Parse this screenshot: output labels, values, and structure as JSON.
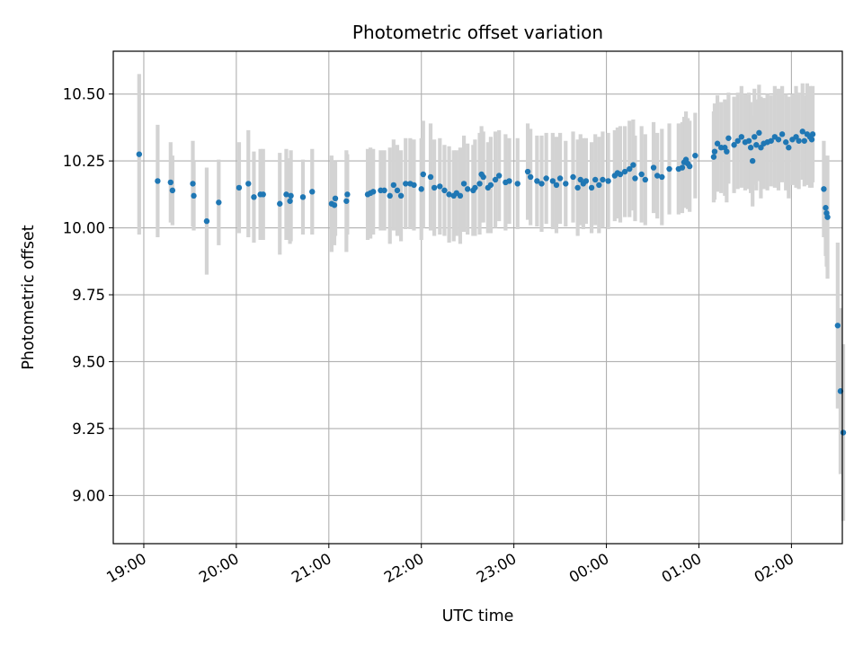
{
  "chart_data": {
    "type": "scatter",
    "title": "Photometric offset variation",
    "xlabel": "UTC time",
    "ylabel": "Photometric offset",
    "grid": true,
    "error_bars": true,
    "colors": {
      "points": "#1f77b4",
      "error_bars": "#d3d3d3",
      "grid": "#b0b0b0"
    },
    "xlim": [
      -0.33,
      7.55
    ],
    "ylim": [
      8.82,
      10.66
    ],
    "x_ticks": [
      {
        "value": 0,
        "label": "19:00"
      },
      {
        "value": 1,
        "label": "20:00"
      },
      {
        "value": 2,
        "label": "21:00"
      },
      {
        "value": 3,
        "label": "22:00"
      },
      {
        "value": 4,
        "label": "23:00"
      },
      {
        "value": 5,
        "label": "00:00"
      },
      {
        "value": 6,
        "label": "01:00"
      },
      {
        "value": 7,
        "label": "02:00"
      }
    ],
    "y_ticks": [
      {
        "value": 9.0,
        "label": "9.00"
      },
      {
        "value": 9.25,
        "label": "9.25"
      },
      {
        "value": 9.5,
        "label": "9.50"
      },
      {
        "value": 9.75,
        "label": "9.75"
      },
      {
        "value": 10.0,
        "label": "10.00"
      },
      {
        "value": 10.25,
        "label": "10.25"
      },
      {
        "value": 10.5,
        "label": "10.50"
      }
    ],
    "points": [
      [
        -0.05,
        10.275,
        0.3
      ],
      [
        0.15,
        10.175,
        0.21
      ],
      [
        0.29,
        10.17,
        0.15
      ],
      [
        0.31,
        10.14,
        0.13
      ],
      [
        0.53,
        10.165,
        0.16
      ],
      [
        0.54,
        10.12,
        0.13
      ],
      [
        0.68,
        10.025,
        0.2
      ],
      [
        0.81,
        10.095,
        0.16
      ],
      [
        1.03,
        10.15,
        0.17
      ],
      [
        1.13,
        10.165,
        0.2
      ],
      [
        1.19,
        10.115,
        0.17
      ],
      [
        1.26,
        10.125,
        0.17
      ],
      [
        1.29,
        10.125,
        0.17
      ],
      [
        1.47,
        10.09,
        0.19
      ],
      [
        1.54,
        10.125,
        0.17
      ],
      [
        1.58,
        10.1,
        0.16
      ],
      [
        1.59,
        10.12,
        0.17
      ],
      [
        1.72,
        10.115,
        0.14
      ],
      [
        1.82,
        10.135,
        0.16
      ],
      [
        2.03,
        10.09,
        0.18
      ],
      [
        2.06,
        10.085,
        0.15
      ],
      [
        2.07,
        10.11,
        0.14
      ],
      [
        2.19,
        10.1,
        0.19
      ],
      [
        2.2,
        10.125,
        0.15
      ],
      [
        2.42,
        10.125,
        0.17
      ],
      [
        2.45,
        10.13,
        0.17
      ],
      [
        2.48,
        10.135,
        0.16
      ],
      [
        2.56,
        10.14,
        0.15
      ],
      [
        2.6,
        10.14,
        0.15
      ],
      [
        2.66,
        10.12,
        0.18
      ],
      [
        2.7,
        10.16,
        0.17
      ],
      [
        2.74,
        10.14,
        0.17
      ],
      [
        2.78,
        10.12,
        0.17
      ],
      [
        2.83,
        10.165,
        0.17
      ],
      [
        2.88,
        10.165,
        0.17
      ],
      [
        2.92,
        10.16,
        0.17
      ],
      [
        3.0,
        10.145,
        0.19
      ],
      [
        3.02,
        10.2,
        0.2
      ],
      [
        3.1,
        10.19,
        0.2
      ],
      [
        3.14,
        10.15,
        0.18
      ],
      [
        3.2,
        10.155,
        0.18
      ],
      [
        3.25,
        10.14,
        0.17
      ],
      [
        3.3,
        10.125,
        0.18
      ],
      [
        3.35,
        10.12,
        0.17
      ],
      [
        3.38,
        10.13,
        0.16
      ],
      [
        3.42,
        10.12,
        0.18
      ],
      [
        3.46,
        10.165,
        0.18
      ],
      [
        3.5,
        10.145,
        0.17
      ],
      [
        3.56,
        10.14,
        0.17
      ],
      [
        3.58,
        10.15,
        0.18
      ],
      [
        3.63,
        10.165,
        0.19
      ],
      [
        3.65,
        10.2,
        0.18
      ],
      [
        3.67,
        10.19,
        0.17
      ],
      [
        3.72,
        10.15,
        0.17
      ],
      [
        3.75,
        10.16,
        0.18
      ],
      [
        3.8,
        10.18,
        0.18
      ],
      [
        3.84,
        10.195,
        0.17
      ],
      [
        3.91,
        10.17,
        0.18
      ],
      [
        3.95,
        10.175,
        0.16
      ],
      [
        4.04,
        10.165,
        0.17
      ],
      [
        4.15,
        10.21,
        0.18
      ],
      [
        4.18,
        10.19,
        0.18
      ],
      [
        4.25,
        10.175,
        0.17
      ],
      [
        4.3,
        10.165,
        0.18
      ],
      [
        4.35,
        10.185,
        0.17
      ],
      [
        4.42,
        10.175,
        0.18
      ],
      [
        4.46,
        10.16,
        0.18
      ],
      [
        4.5,
        10.185,
        0.17
      ],
      [
        4.56,
        10.165,
        0.16
      ],
      [
        4.64,
        10.19,
        0.17
      ],
      [
        4.69,
        10.15,
        0.18
      ],
      [
        4.72,
        10.18,
        0.17
      ],
      [
        4.75,
        10.165,
        0.17
      ],
      [
        4.78,
        10.175,
        0.16
      ],
      [
        4.84,
        10.15,
        0.17
      ],
      [
        4.88,
        10.18,
        0.17
      ],
      [
        4.92,
        10.16,
        0.18
      ],
      [
        4.96,
        10.18,
        0.18
      ],
      [
        5.02,
        10.175,
        0.18
      ],
      [
        5.09,
        10.195,
        0.17
      ],
      [
        5.12,
        10.205,
        0.17
      ],
      [
        5.15,
        10.2,
        0.18
      ],
      [
        5.2,
        10.21,
        0.17
      ],
      [
        5.25,
        10.22,
        0.18
      ],
      [
        5.29,
        10.235,
        0.17
      ],
      [
        5.31,
        10.185,
        0.16
      ],
      [
        5.38,
        10.2,
        0.18
      ],
      [
        5.42,
        10.18,
        0.17
      ],
      [
        5.51,
        10.225,
        0.17
      ],
      [
        5.55,
        10.195,
        0.16
      ],
      [
        5.6,
        10.19,
        0.18
      ],
      [
        5.68,
        10.22,
        0.17
      ],
      [
        5.78,
        10.22,
        0.17
      ],
      [
        5.82,
        10.225,
        0.17
      ],
      [
        5.84,
        10.245,
        0.17
      ],
      [
        5.86,
        10.255,
        0.18
      ],
      [
        5.88,
        10.24,
        0.17
      ],
      [
        5.9,
        10.23,
        0.17
      ],
      [
        5.96,
        10.27,
        0.16
      ],
      [
        6.16,
        10.265,
        0.17
      ],
      [
        6.17,
        10.285,
        0.18
      ],
      [
        6.2,
        10.315,
        0.18
      ],
      [
        6.24,
        10.3,
        0.17
      ],
      [
        6.28,
        10.3,
        0.18
      ],
      [
        6.3,
        10.285,
        0.19
      ],
      [
        6.32,
        10.335,
        0.17
      ],
      [
        6.38,
        10.31,
        0.18
      ],
      [
        6.42,
        10.325,
        0.18
      ],
      [
        6.46,
        10.34,
        0.19
      ],
      [
        6.5,
        10.32,
        0.18
      ],
      [
        6.54,
        10.325,
        0.18
      ],
      [
        6.56,
        10.3,
        0.17
      ],
      [
        6.58,
        10.25,
        0.17
      ],
      [
        6.6,
        10.34,
        0.18
      ],
      [
        6.62,
        10.31,
        0.17
      ],
      [
        6.65,
        10.355,
        0.18
      ],
      [
        6.67,
        10.3,
        0.19
      ],
      [
        6.7,
        10.315,
        0.17
      ],
      [
        6.74,
        10.32,
        0.18
      ],
      [
        6.78,
        10.325,
        0.17
      ],
      [
        6.82,
        10.34,
        0.19
      ],
      [
        6.86,
        10.33,
        0.19
      ],
      [
        6.9,
        10.35,
        0.18
      ],
      [
        6.94,
        10.32,
        0.18
      ],
      [
        6.97,
        10.3,
        0.19
      ],
      [
        7.01,
        10.33,
        0.17
      ],
      [
        7.05,
        10.34,
        0.19
      ],
      [
        7.08,
        10.325,
        0.18
      ],
      [
        7.12,
        10.36,
        0.18
      ],
      [
        7.14,
        10.325,
        0.17
      ],
      [
        7.17,
        10.35,
        0.19
      ],
      [
        7.2,
        10.34,
        0.19
      ],
      [
        7.22,
        10.33,
        0.18
      ],
      [
        7.23,
        10.35,
        0.18
      ],
      [
        7.35,
        10.145,
        0.18
      ],
      [
        7.37,
        10.075,
        0.18
      ],
      [
        7.38,
        10.055,
        0.2
      ],
      [
        7.39,
        10.04,
        0.23
      ],
      [
        7.5,
        9.635,
        0.31
      ],
      [
        7.53,
        9.39,
        0.31
      ],
      [
        7.56,
        9.235,
        0.33
      ]
    ]
  }
}
